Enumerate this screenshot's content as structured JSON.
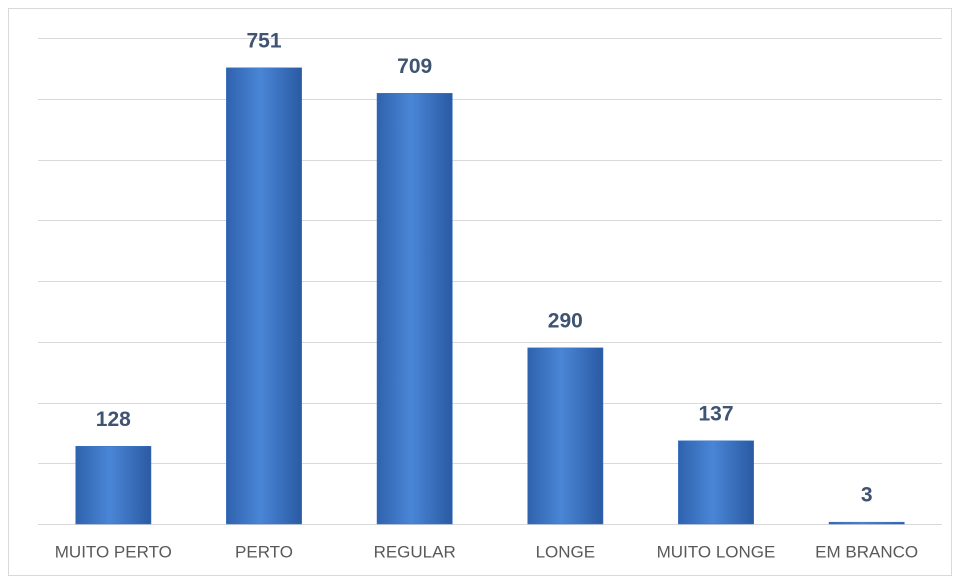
{
  "chart_data": {
    "type": "bar",
    "categories": [
      "MUITO PERTO",
      "PERTO",
      "REGULAR",
      "LONGE",
      "MUITO LONGE",
      "EM BRANCO"
    ],
    "values": [
      128,
      751,
      709,
      290,
      137,
      3
    ],
    "color": "#3b73c4",
    "ylim": [
      0,
      800
    ],
    "yticks": [
      0,
      100,
      200,
      300,
      400,
      500,
      600,
      700,
      800
    ],
    "grid": true
  }
}
